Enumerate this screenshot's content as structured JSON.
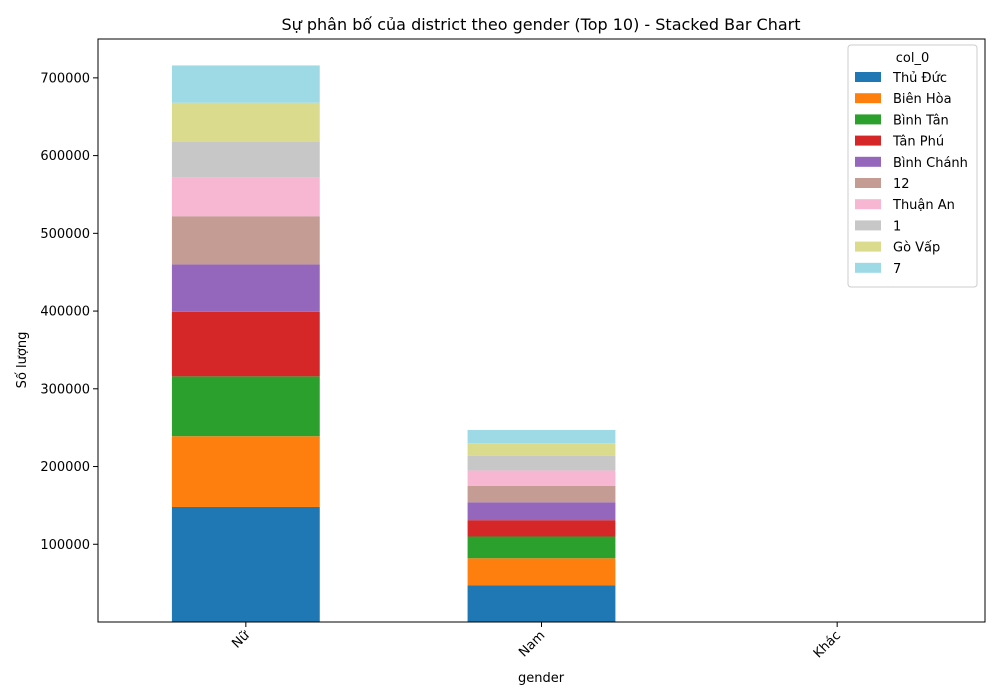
{
  "chart_data": {
    "type": "bar",
    "stacked": true,
    "title": "Sự phân bố của district theo gender (Top 10) - Stacked Bar Chart",
    "xlabel": "gender",
    "ylabel": "Số lượng",
    "categories": [
      "Nữ",
      "Nam",
      "Khác"
    ],
    "ylim": [
      0,
      750000
    ],
    "yticks": [
      100000,
      200000,
      300000,
      400000,
      500000,
      600000,
      700000
    ],
    "grid": false,
    "legend": {
      "title": "col_0",
      "position": "top-right"
    },
    "series": [
      {
        "name": "Thủ Đức",
        "color": "#1f77b4",
        "values": [
          148000,
          47000,
          0
        ]
      },
      {
        "name": "Biên Hòa",
        "color": "#ff7f0e",
        "values": [
          91000,
          35000,
          0
        ]
      },
      {
        "name": "Bình Tân",
        "color": "#2ca02c",
        "values": [
          77000,
          28000,
          0
        ]
      },
      {
        "name": "Tân Phú",
        "color": "#d62728",
        "values": [
          83000,
          21000,
          0
        ]
      },
      {
        "name": "Bình Chánh",
        "color": "#9467bd",
        "values": [
          61000,
          23000,
          0
        ]
      },
      {
        "name": "12",
        "color": "#c49c94",
        "values": [
          62000,
          21000,
          0
        ]
      },
      {
        "name": "Thuận An",
        "color": "#f7b6d2",
        "values": [
          50000,
          20000,
          0
        ]
      },
      {
        "name": "1",
        "color": "#c7c7c7",
        "values": [
          46000,
          19000,
          0
        ]
      },
      {
        "name": "Gò Vấp",
        "color": "#dbdb8d",
        "values": [
          50000,
          16000,
          0
        ]
      },
      {
        "name": "7",
        "color": "#9edae5",
        "values": [
          48000,
          17000,
          0
        ]
      }
    ]
  }
}
